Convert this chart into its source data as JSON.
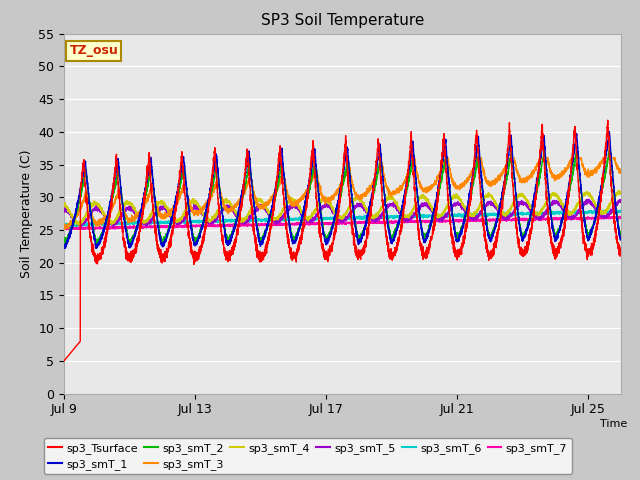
{
  "title": "SP3 Soil Temperature",
  "ylabel": "Soil Temperature (C)",
  "xlabel": "Time",
  "ylim": [
    0,
    55
  ],
  "yticks": [
    0,
    5,
    10,
    15,
    20,
    25,
    30,
    35,
    40,
    45,
    50,
    55
  ],
  "xtick_labels": [
    "Jul 9",
    "Jul 13",
    "Jul 17",
    "Jul 21",
    "Jul 25"
  ],
  "xtick_positions": [
    0,
    4,
    8,
    12,
    16
  ],
  "series_colors": {
    "sp3_Tsurface": "#ff0000",
    "sp3_smT_1": "#0000cc",
    "sp3_smT_2": "#00bb00",
    "sp3_smT_3": "#ff8800",
    "sp3_smT_4": "#cccc00",
    "sp3_smT_5": "#9900cc",
    "sp3_smT_6": "#00cccc",
    "sp3_smT_7": "#ff00aa"
  },
  "legend_label": "TZ_osu",
  "n_days": 17
}
